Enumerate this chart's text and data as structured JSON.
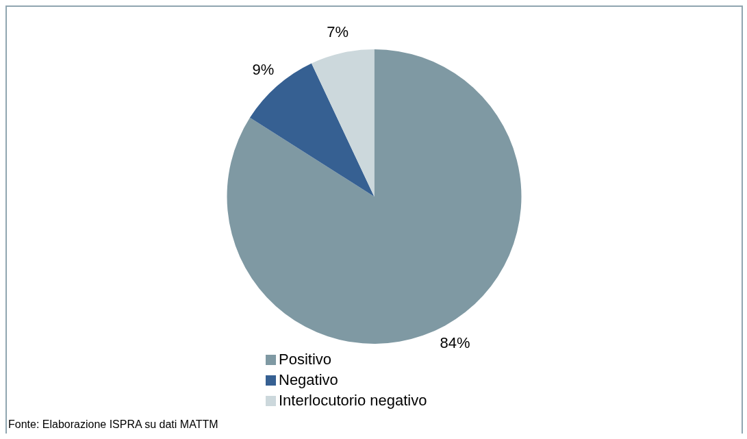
{
  "chart_data": {
    "type": "pie",
    "categories": [
      "Positivo",
      "Negativo",
      "Interlocutorio negativo"
    ],
    "values": [
      84,
      9,
      7
    ],
    "colors": [
      "#7f99a3",
      "#366092",
      "#ccd8dc"
    ],
    "value_labels": [
      "84%",
      "9%",
      "7%"
    ],
    "legend": "bottom",
    "annotations": [
      "Fonte: Elaborazione ISPRA su dati MATTM"
    ]
  }
}
